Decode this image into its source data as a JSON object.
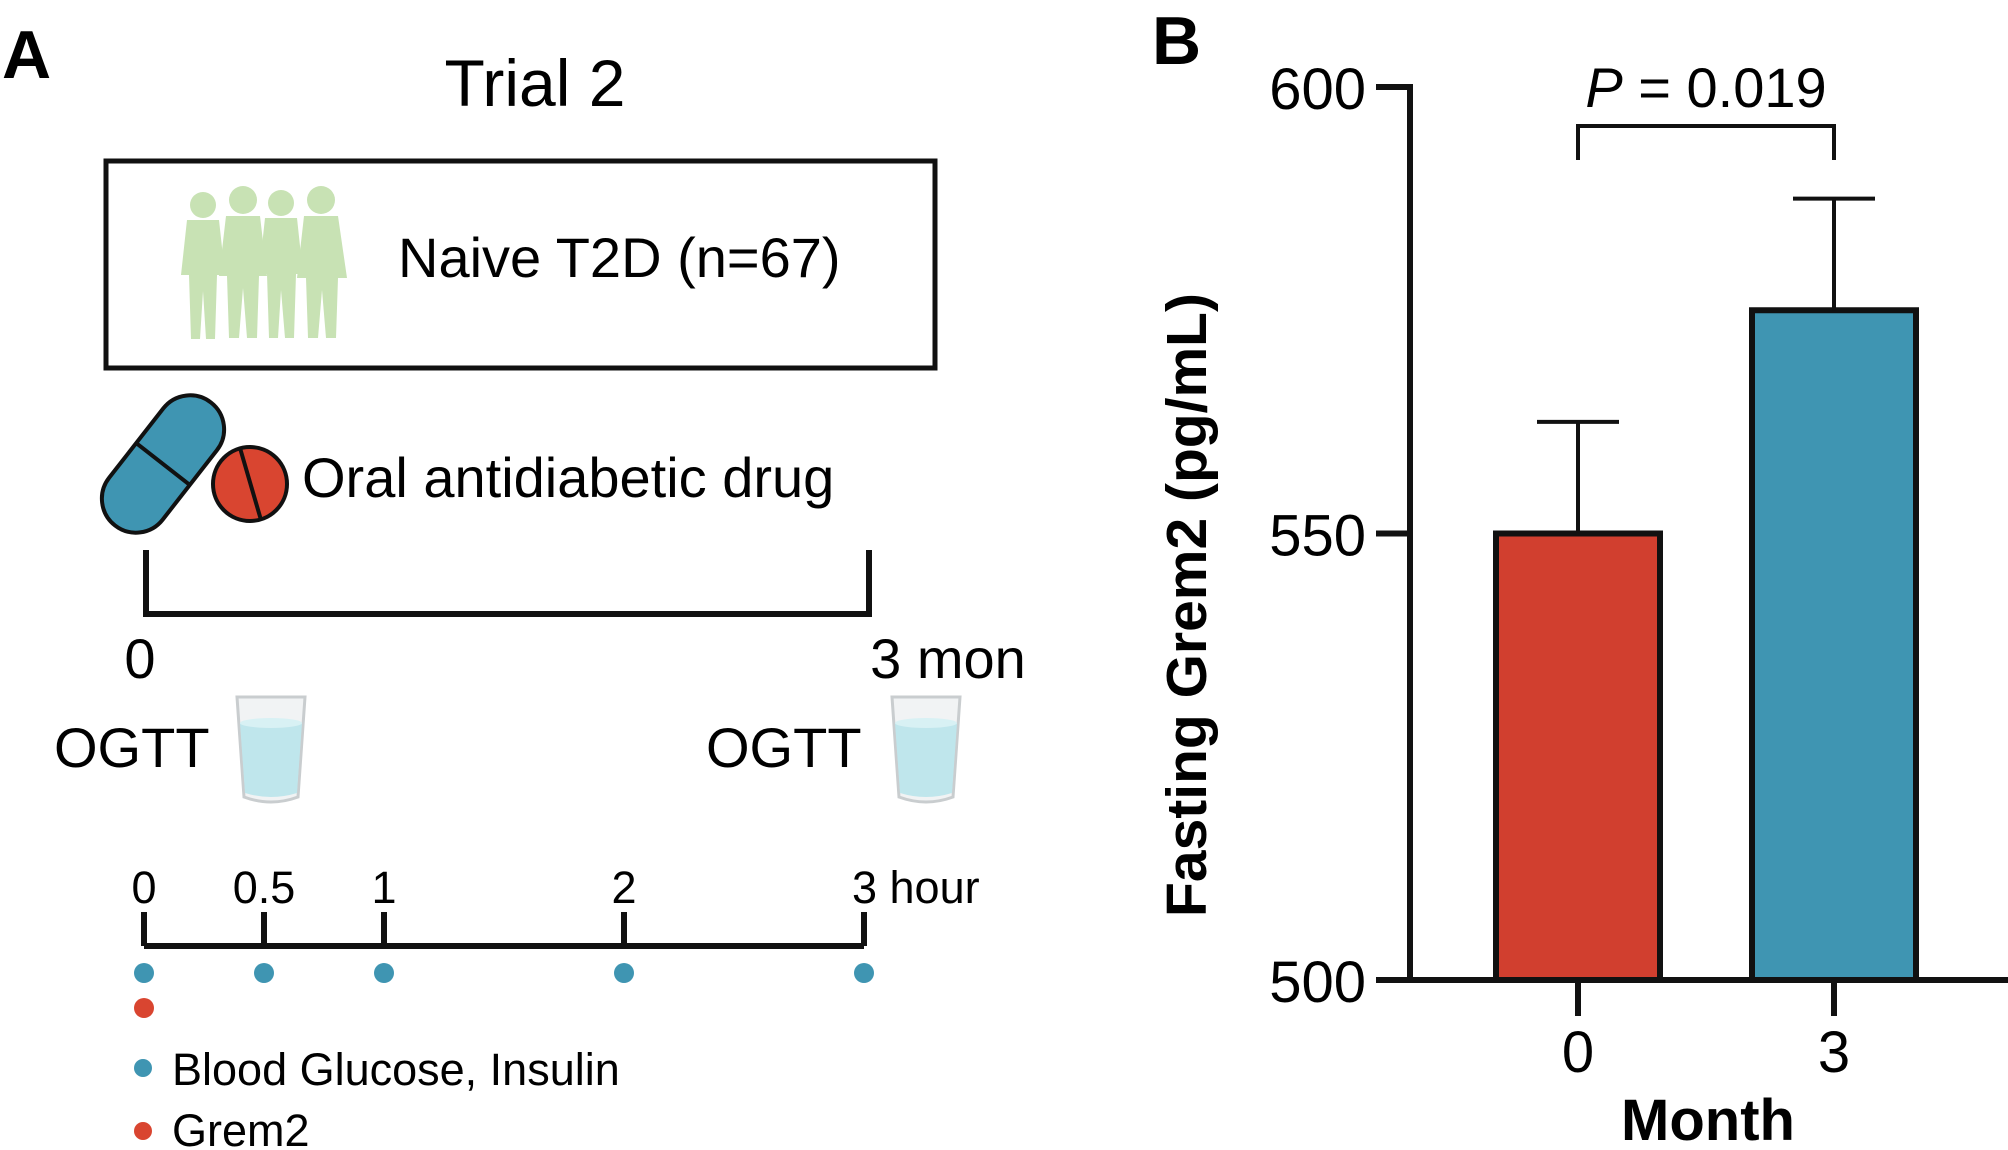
{
  "panel_a": {
    "label": "A",
    "title": "Trial 2",
    "cohort": "Naive T2D (n=67)",
    "treatment": "Oral antidiabetic drug",
    "timeline": {
      "start": "0",
      "end": "3 mon"
    },
    "ogtt_label": "OGTT",
    "ogtt_axis": {
      "ticks": [
        {
          "label": "0",
          "t": 0
        },
        {
          "label": "0.5",
          "t": 0.5
        },
        {
          "label": "1",
          "t": 1
        },
        {
          "label": "2",
          "t": 2
        },
        {
          "label": "3 hour",
          "t": 3
        }
      ],
      "max": 3
    },
    "samples": {
      "glucose_insulin_times": [
        0,
        0.5,
        1,
        2,
        3
      ],
      "grem2_times": [
        0
      ]
    },
    "legend": [
      {
        "label": "Blood Glucose, Insulin",
        "color": "#3f95b2"
      },
      {
        "label": "Grem2",
        "color": "#d94530"
      }
    ],
    "colors": {
      "capsule": "#3f95b2",
      "tablet": "#d94530",
      "people": "#c8e2b4",
      "glass": "#bfe6ec"
    }
  },
  "chart_data": {
    "panel_label": "B",
    "type": "bar",
    "categories": [
      "0",
      "3"
    ],
    "values": [
      550,
      575
    ],
    "errors": [
      12.5,
      12.5
    ],
    "colors": [
      "#d13f2f",
      "#3f95b2"
    ],
    "xlabel": "Month",
    "ylabel": "Fasting Grem2 (pg/mL)",
    "ylim": [
      500,
      600
    ],
    "yticks": [
      500,
      550,
      600
    ],
    "significance": {
      "from": 0,
      "to": 1,
      "p_prefix": "P",
      "p_text": " = 0.019"
    },
    "grid": false
  }
}
